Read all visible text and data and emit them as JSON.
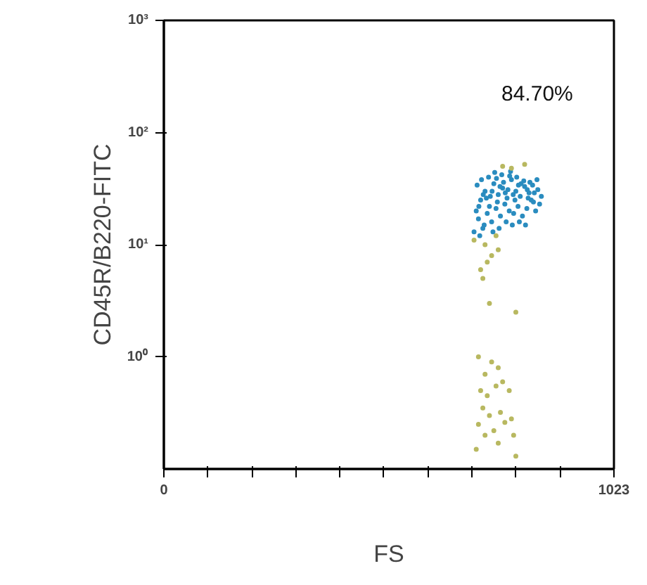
{
  "chart_data": {
    "type": "scatter",
    "xlabel": "FS",
    "ylabel": "CD45R/B220-FITC",
    "annotations": [
      "84.70%"
    ],
    "log": "y",
    "grid": false,
    "marker": "circle",
    "xlim": [
      0,
      1023
    ],
    "ylim": [
      0.1,
      1000
    ],
    "xticks": [
      0,
      {
        "value": 100,
        "label": null
      },
      {
        "value": 200,
        "label": null
      },
      {
        "value": 300,
        "label": null
      },
      {
        "value": 400,
        "label": null
      },
      {
        "value": 500,
        "label": null
      },
      {
        "value": 600,
        "label": null
      },
      {
        "value": 700,
        "label": null
      },
      {
        "value": 800,
        "label": null
      },
      {
        "value": 900,
        "label": null
      },
      1023
    ],
    "yticks": [
      {
        "value": 1,
        "label": "10⁰"
      },
      {
        "value": 10,
        "label": "10¹"
      },
      {
        "value": 100,
        "label": "10²"
      },
      {
        "value": 1000,
        "label": "10³"
      }
    ],
    "series": [
      {
        "color": "#2a8cbf",
        "x": [
          710,
          720,
          730,
          740,
          750,
          760,
          770,
          780,
          790,
          800,
          810,
          820,
          830,
          840,
          850,
          715,
          725,
          735,
          745,
          755,
          765,
          775,
          785,
          795,
          805,
          815,
          825,
          835,
          845,
          705,
          718,
          728,
          748,
          762,
          778,
          792,
          808,
          822,
          738,
          752,
          768,
          788,
          802,
          818,
          832,
          848,
          858,
          712,
          722,
          742,
          758,
          772,
          782,
          798,
          812,
          828,
          842,
          854,
          733,
          746,
          764,
          776,
          794,
          806,
          826,
          838,
          716,
          726,
          756,
          786
        ],
        "values": [
          20,
          25,
          30,
          22,
          35,
          28,
          32,
          26,
          38,
          30,
          27,
          33,
          29,
          24,
          31,
          17,
          14,
          19,
          16,
          21,
          18,
          23,
          20,
          19,
          22,
          18,
          21,
          25,
          20,
          13,
          12,
          15,
          13,
          14,
          16,
          15,
          16,
          15,
          40,
          44,
          42,
          45,
          40,
          37,
          36,
          38,
          27,
          34,
          38,
          27,
          24,
          36,
          31,
          25,
          35,
          26,
          29,
          23,
          26,
          30,
          33,
          29,
          28,
          34,
          31,
          34,
          22,
          28,
          39,
          41
        ]
      },
      {
        "color": "#b8b860",
        "x": [
          705,
          730,
          745,
          735,
          720,
          725,
          760,
          755,
          790,
          770,
          820,
          740,
          800,
          715,
          730,
          745,
          760,
          720,
          735,
          755,
          770,
          785,
          725,
          740,
          765,
          790,
          715,
          730,
          750,
          775,
          795,
          710,
          800,
          760
        ],
        "values": [
          11,
          10,
          8,
          7,
          6,
          5,
          9,
          12,
          48,
          50,
          52,
          3,
          2.5,
          1.0,
          0.7,
          0.9,
          0.8,
          0.5,
          0.45,
          0.55,
          0.6,
          0.5,
          0.35,
          0.3,
          0.32,
          0.28,
          0.25,
          0.2,
          0.22,
          0.26,
          0.2,
          0.15,
          0.13,
          0.17
        ]
      }
    ]
  }
}
